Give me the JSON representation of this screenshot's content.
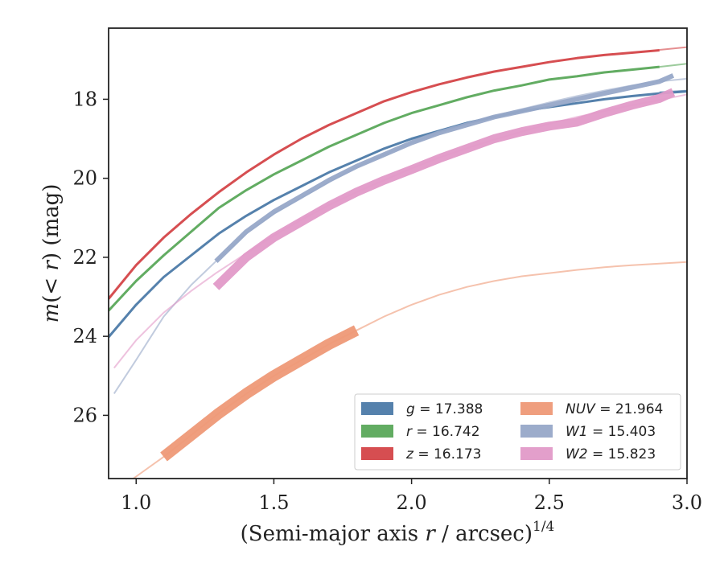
{
  "chart_data": {
    "type": "line",
    "xlabel": "(Semi-major axis r / arcsec)^{1/4}",
    "ylabel": "m(< r) (mag)",
    "xlim": [
      0.9,
      3.0
    ],
    "ylim": [
      27.6,
      16.2
    ],
    "y_inverted": true,
    "xticks": [
      "1.0",
      "1.5",
      "2.0",
      "2.5",
      "3.0"
    ],
    "yticks": [
      "18",
      "20",
      "22",
      "24",
      "26"
    ],
    "legend_position": "lower-right",
    "grid": false,
    "series": [
      {
        "name": "g = 17.388",
        "color": "#4c7aa8",
        "band": [
          [
            0.9,
            24.02
          ],
          [
            1.0,
            23.2
          ],
          [
            1.1,
            22.5
          ],
          [
            1.2,
            21.95
          ],
          [
            1.3,
            21.4
          ],
          [
            1.4,
            20.95
          ],
          [
            1.5,
            20.55
          ],
          [
            1.6,
            20.2
          ],
          [
            1.7,
            19.85
          ],
          [
            1.8,
            19.55
          ],
          [
            1.9,
            19.25
          ],
          [
            2.0,
            19.0
          ],
          [
            2.1,
            18.8
          ],
          [
            2.2,
            18.6
          ],
          [
            2.3,
            18.45
          ],
          [
            2.4,
            18.3
          ],
          [
            2.5,
            18.2
          ],
          [
            2.6,
            18.1
          ],
          [
            2.7,
            18.0
          ],
          [
            2.8,
            17.92
          ],
          [
            2.9,
            17.85
          ],
          [
            3.0,
            17.8
          ]
        ],
        "model": [
          [
            2.9,
            17.82
          ],
          [
            3.0,
            17.78
          ]
        ]
      },
      {
        "name": "r = 16.742",
        "color": "#5aa85a",
        "band": [
          [
            0.9,
            23.35
          ],
          [
            1.0,
            22.6
          ],
          [
            1.1,
            21.95
          ],
          [
            1.2,
            21.35
          ],
          [
            1.3,
            20.75
          ],
          [
            1.4,
            20.3
          ],
          [
            1.5,
            19.9
          ],
          [
            1.6,
            19.55
          ],
          [
            1.7,
            19.2
          ],
          [
            1.8,
            18.9
          ],
          [
            1.9,
            18.6
          ],
          [
            2.0,
            18.35
          ],
          [
            2.1,
            18.15
          ],
          [
            2.2,
            17.95
          ],
          [
            2.3,
            17.78
          ],
          [
            2.4,
            17.65
          ],
          [
            2.5,
            17.5
          ],
          [
            2.6,
            17.42
          ],
          [
            2.7,
            17.32
          ],
          [
            2.8,
            17.25
          ],
          [
            2.9,
            17.18
          ]
        ],
        "model": [
          [
            2.9,
            17.18
          ],
          [
            3.0,
            17.1
          ]
        ]
      },
      {
        "name": "z = 16.173",
        "color": "#d44548",
        "band": [
          [
            0.9,
            23.05
          ],
          [
            1.0,
            22.2
          ],
          [
            1.1,
            21.5
          ],
          [
            1.2,
            20.9
          ],
          [
            1.3,
            20.35
          ],
          [
            1.4,
            19.85
          ],
          [
            1.5,
            19.4
          ],
          [
            1.6,
            19.0
          ],
          [
            1.7,
            18.65
          ],
          [
            1.8,
            18.35
          ],
          [
            1.9,
            18.05
          ],
          [
            2.0,
            17.82
          ],
          [
            2.1,
            17.62
          ],
          [
            2.2,
            17.45
          ],
          [
            2.3,
            17.3
          ],
          [
            2.4,
            17.18
          ],
          [
            2.5,
            17.06
          ],
          [
            2.6,
            16.96
          ],
          [
            2.7,
            16.88
          ],
          [
            2.8,
            16.82
          ],
          [
            2.9,
            16.76
          ]
        ],
        "model": [
          [
            2.9,
            16.75
          ],
          [
            3.0,
            16.68
          ]
        ]
      },
      {
        "name": "NUV = 21.964",
        "color": "#ee9977",
        "band": [
          [
            1.1,
            27.05
          ],
          [
            1.2,
            26.5
          ],
          [
            1.3,
            25.95
          ],
          [
            1.4,
            25.45
          ],
          [
            1.5,
            25.0
          ],
          [
            1.6,
            24.6
          ],
          [
            1.7,
            24.2
          ],
          [
            1.8,
            23.85
          ]
        ],
        "model": [
          [
            0.95,
            27.8
          ],
          [
            1.0,
            27.55
          ],
          [
            1.1,
            27.05
          ],
          [
            1.2,
            26.5
          ],
          [
            1.3,
            25.95
          ],
          [
            1.4,
            25.45
          ],
          [
            1.5,
            25.0
          ],
          [
            1.6,
            24.6
          ],
          [
            1.7,
            24.2
          ],
          [
            1.8,
            23.85
          ],
          [
            1.9,
            23.5
          ],
          [
            2.0,
            23.2
          ],
          [
            2.1,
            22.95
          ],
          [
            2.2,
            22.75
          ],
          [
            2.3,
            22.6
          ],
          [
            2.4,
            22.48
          ],
          [
            2.5,
            22.4
          ],
          [
            2.6,
            22.32
          ],
          [
            2.7,
            22.25
          ],
          [
            2.8,
            22.2
          ],
          [
            2.9,
            22.16
          ],
          [
            3.0,
            22.12
          ]
        ]
      },
      {
        "name": "W1 = 15.403",
        "color": "#97a8c8",
        "band": [
          [
            1.29,
            22.1
          ],
          [
            1.4,
            21.35
          ],
          [
            1.5,
            20.85
          ],
          [
            1.6,
            20.45
          ],
          [
            1.7,
            20.05
          ],
          [
            1.8,
            19.7
          ],
          [
            1.9,
            19.4
          ],
          [
            2.0,
            19.1
          ],
          [
            2.1,
            18.85
          ],
          [
            2.2,
            18.65
          ],
          [
            2.3,
            18.45
          ],
          [
            2.4,
            18.3
          ],
          [
            2.5,
            18.15
          ],
          [
            2.6,
            18.0
          ],
          [
            2.7,
            17.85
          ],
          [
            2.8,
            17.7
          ],
          [
            2.9,
            17.55
          ],
          [
            2.95,
            17.4
          ]
        ],
        "model": [
          [
            0.92,
            25.45
          ],
          [
            1.0,
            24.6
          ],
          [
            1.1,
            23.5
          ],
          [
            1.2,
            22.7
          ],
          [
            1.29,
            22.1
          ],
          [
            1.4,
            21.4
          ],
          [
            1.5,
            20.9
          ],
          [
            1.6,
            20.5
          ],
          [
            1.7,
            20.1
          ],
          [
            1.8,
            19.72
          ],
          [
            1.9,
            19.4
          ],
          [
            2.0,
            19.1
          ],
          [
            2.1,
            18.85
          ],
          [
            2.2,
            18.62
          ],
          [
            2.3,
            18.42
          ],
          [
            2.4,
            18.25
          ],
          [
            2.5,
            18.08
          ],
          [
            2.6,
            17.92
          ],
          [
            2.7,
            17.78
          ],
          [
            2.8,
            17.65
          ],
          [
            2.9,
            17.55
          ],
          [
            3.0,
            17.48
          ]
        ]
      },
      {
        "name": "W2 = 15.823",
        "color": "#e29ac8",
        "band": [
          [
            1.29,
            22.75
          ],
          [
            1.4,
            22.0
          ],
          [
            1.5,
            21.5
          ],
          [
            1.6,
            21.1
          ],
          [
            1.7,
            20.7
          ],
          [
            1.8,
            20.35
          ],
          [
            1.9,
            20.05
          ],
          [
            2.0,
            19.78
          ],
          [
            2.1,
            19.5
          ],
          [
            2.2,
            19.25
          ],
          [
            2.3,
            19.0
          ],
          [
            2.4,
            18.82
          ],
          [
            2.5,
            18.68
          ],
          [
            2.6,
            18.58
          ],
          [
            2.7,
            18.35
          ],
          [
            2.8,
            18.15
          ],
          [
            2.9,
            17.98
          ],
          [
            2.95,
            17.82
          ]
        ],
        "model": [
          [
            0.92,
            24.8
          ],
          [
            1.0,
            24.1
          ],
          [
            1.1,
            23.4
          ],
          [
            1.2,
            22.85
          ],
          [
            1.29,
            22.4
          ],
          [
            1.4,
            21.9
          ],
          [
            1.5,
            21.45
          ],
          [
            1.6,
            21.05
          ],
          [
            1.7,
            20.68
          ],
          [
            1.8,
            20.35
          ],
          [
            1.9,
            20.05
          ],
          [
            2.0,
            19.75
          ],
          [
            2.1,
            19.48
          ],
          [
            2.2,
            19.24
          ],
          [
            2.3,
            19.02
          ],
          [
            2.4,
            18.82
          ],
          [
            2.5,
            18.62
          ],
          [
            2.6,
            18.45
          ],
          [
            2.7,
            18.3
          ],
          [
            2.8,
            18.15
          ],
          [
            2.9,
            18.02
          ],
          [
            3.0,
            17.88
          ]
        ]
      }
    ]
  }
}
